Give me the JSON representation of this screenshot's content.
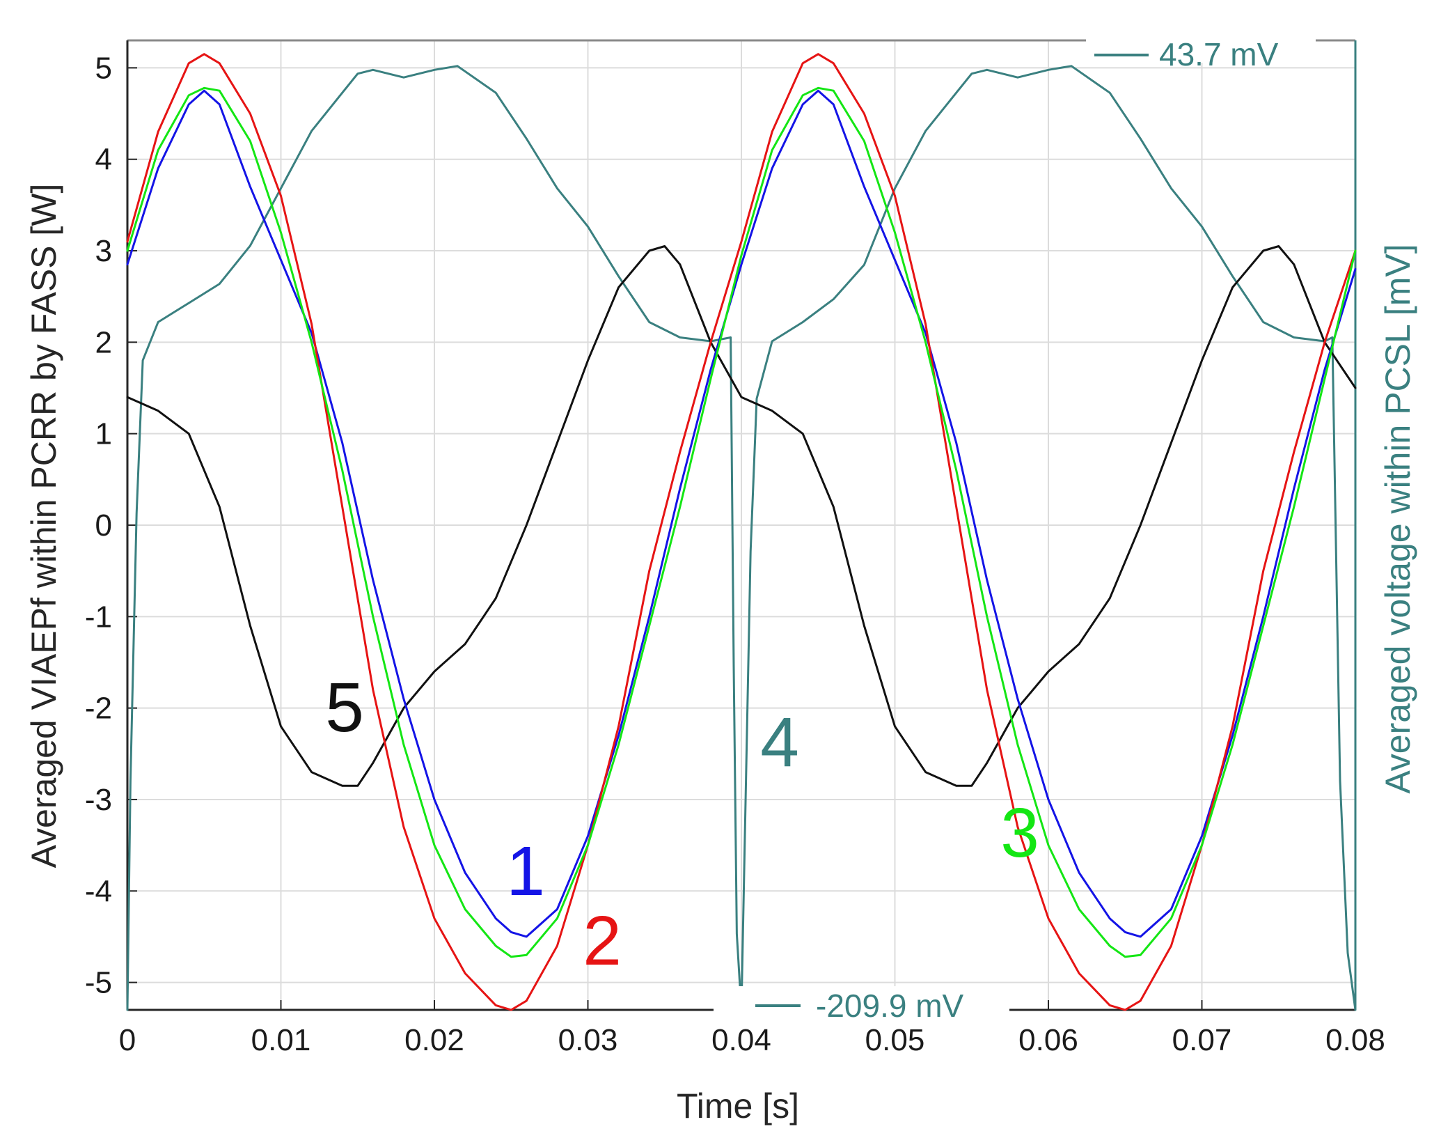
{
  "chart_data": {
    "type": "line",
    "xlabel": "Time [s]",
    "ylabel": "Averaged VIAEPf within PCRR by FASS [W]",
    "y2label": "Averaged voltage within PCSL [mV]",
    "xlim": [
      0,
      0.08
    ],
    "ylim": [
      -5.3,
      5.3
    ],
    "y2lim": [
      -209.9,
      43.7
    ],
    "x_ticks": [
      "0",
      "0.01",
      "0.02",
      "0.03",
      "0.04",
      "0.05",
      "0.06",
      "0.07",
      "0.08"
    ],
    "y_ticks": [
      "5",
      "4",
      "3",
      "2",
      "1",
      "0",
      "-1",
      "-2",
      "-3",
      "-4",
      "-5"
    ],
    "grid": true,
    "colors": {
      "series1": "#1414e6",
      "series2": "#e61414",
      "series3": "#14e614",
      "series4": "#3a8080",
      "series5": "#111111",
      "axis": "#262626",
      "grid": "#dcdcdc"
    },
    "series": [
      {
        "name": "1",
        "axis": "left",
        "x": [
          0,
          0.002,
          0.004,
          0.005,
          0.006,
          0.008,
          0.01,
          0.012,
          0.014,
          0.016,
          0.018,
          0.02,
          0.022,
          0.024,
          0.025,
          0.026,
          0.028,
          0.03,
          0.032,
          0.034,
          0.036,
          0.038,
          0.04,
          0.042,
          0.044,
          0.045,
          0.046,
          0.048,
          0.05,
          0.052,
          0.054,
          0.056,
          0.058,
          0.06,
          0.062,
          0.064,
          0.065,
          0.066,
          0.068,
          0.07,
          0.072,
          0.074,
          0.076,
          0.078,
          0.08
        ],
        "y": [
          2.85,
          3.9,
          4.6,
          4.75,
          4.6,
          3.7,
          2.9,
          2.1,
          0.9,
          -0.6,
          -1.9,
          -3.0,
          -3.8,
          -4.3,
          -4.45,
          -4.5,
          -4.2,
          -3.4,
          -2.3,
          -1.0,
          0.4,
          1.7,
          2.85,
          3.9,
          4.6,
          4.75,
          4.6,
          3.7,
          2.9,
          2.1,
          0.9,
          -0.6,
          -1.9,
          -3.0,
          -3.8,
          -4.3,
          -4.45,
          -4.5,
          -4.2,
          -3.4,
          -2.3,
          -1.0,
          0.4,
          1.7,
          2.8
        ]
      },
      {
        "name": "2",
        "axis": "left",
        "x": [
          0,
          0.002,
          0.004,
          0.005,
          0.006,
          0.008,
          0.01,
          0.012,
          0.014,
          0.016,
          0.018,
          0.02,
          0.022,
          0.024,
          0.025,
          0.026,
          0.028,
          0.03,
          0.032,
          0.034,
          0.036,
          0.038,
          0.04,
          0.042,
          0.044,
          0.045,
          0.046,
          0.048,
          0.05,
          0.052,
          0.054,
          0.056,
          0.058,
          0.06,
          0.062,
          0.064,
          0.065,
          0.066,
          0.068,
          0.07,
          0.072,
          0.074,
          0.076,
          0.078,
          0.08
        ],
        "y": [
          3.1,
          4.3,
          5.05,
          5.15,
          5.05,
          4.5,
          3.6,
          2.2,
          0.2,
          -1.8,
          -3.3,
          -4.3,
          -4.9,
          -5.25,
          -5.3,
          -5.2,
          -4.6,
          -3.5,
          -2.2,
          -0.5,
          0.8,
          2.0,
          3.1,
          4.3,
          5.05,
          5.15,
          5.05,
          4.5,
          3.6,
          2.2,
          0.2,
          -1.8,
          -3.3,
          -4.3,
          -4.9,
          -5.25,
          -5.3,
          -5.2,
          -4.6,
          -3.5,
          -2.2,
          -0.5,
          0.8,
          2.0,
          3.0
        ]
      },
      {
        "name": "3",
        "axis": "left",
        "x": [
          0,
          0.002,
          0.004,
          0.005,
          0.006,
          0.008,
          0.01,
          0.012,
          0.014,
          0.016,
          0.018,
          0.02,
          0.022,
          0.024,
          0.025,
          0.026,
          0.028,
          0.03,
          0.032,
          0.034,
          0.036,
          0.038,
          0.04,
          0.042,
          0.044,
          0.045,
          0.046,
          0.048,
          0.05,
          0.052,
          0.054,
          0.056,
          0.058,
          0.06,
          0.062,
          0.064,
          0.065,
          0.066,
          0.068,
          0.07,
          0.072,
          0.074,
          0.076,
          0.078,
          0.08
        ],
        "y": [
          3.0,
          4.1,
          4.7,
          4.78,
          4.75,
          4.2,
          3.2,
          2.0,
          0.6,
          -1.0,
          -2.4,
          -3.5,
          -4.2,
          -4.6,
          -4.72,
          -4.7,
          -4.3,
          -3.5,
          -2.4,
          -1.1,
          0.2,
          1.6,
          2.95,
          4.1,
          4.7,
          4.78,
          4.75,
          4.2,
          3.2,
          2.0,
          0.6,
          -1.0,
          -2.4,
          -3.5,
          -4.2,
          -4.6,
          -4.72,
          -4.7,
          -4.3,
          -3.5,
          -2.4,
          -1.1,
          0.2,
          1.6,
          3.0
        ]
      },
      {
        "name": "4",
        "axis": "right",
        "x": [
          0,
          0.0002,
          0.0006,
          0.001,
          0.002,
          0.004,
          0.006,
          0.008,
          0.01,
          0.012,
          0.014,
          0.015,
          0.016,
          0.018,
          0.02,
          0.0215,
          0.024,
          0.026,
          0.028,
          0.03,
          0.032,
          0.034,
          0.036,
          0.038,
          0.0393,
          0.0395,
          0.0397,
          0.04,
          0.0402,
          0.0406,
          0.041,
          0.042,
          0.044,
          0.046,
          0.048,
          0.05,
          0.052,
          0.054,
          0.055,
          0.056,
          0.058,
          0.06,
          0.0615,
          0.064,
          0.066,
          0.068,
          0.07,
          0.072,
          0.074,
          0.076,
          0.078,
          0.0785,
          0.0787,
          0.079,
          0.0795,
          0.08
        ],
        "y": [
          -209.9,
          -150,
          -80,
          -40,
          -30,
          -25,
          -20,
          -10,
          5,
          20,
          30,
          35,
          36,
          34,
          36,
          37,
          30,
          18,
          5,
          -5,
          -18,
          -30,
          -34,
          -35,
          -34,
          -120,
          -190,
          -209.9,
          -170,
          -90,
          -50,
          -35,
          -30,
          -24,
          -15,
          5,
          20,
          30,
          35,
          36,
          34,
          36,
          37,
          30,
          18,
          5,
          -5,
          -18,
          -30,
          -34,
          -35,
          -34,
          -80,
          -150,
          -195,
          -209.9
        ]
      },
      {
        "name": "5",
        "axis": "left",
        "x": [
          0,
          0.002,
          0.004,
          0.006,
          0.008,
          0.01,
          0.012,
          0.014,
          0.015,
          0.016,
          0.018,
          0.02,
          0.022,
          0.024,
          0.026,
          0.028,
          0.03,
          0.032,
          0.034,
          0.035,
          0.036,
          0.038,
          0.04,
          0.042,
          0.044,
          0.046,
          0.048,
          0.05,
          0.052,
          0.054,
          0.055,
          0.056,
          0.058,
          0.06,
          0.062,
          0.064,
          0.066,
          0.068,
          0.07,
          0.072,
          0.074,
          0.075,
          0.076,
          0.078,
          0.08
        ],
        "y": [
          1.4,
          1.25,
          1.0,
          0.2,
          -1.1,
          -2.2,
          -2.7,
          -2.85,
          -2.85,
          -2.6,
          -2.0,
          -1.6,
          -1.3,
          -0.8,
          0.0,
          0.9,
          1.8,
          2.6,
          3.0,
          3.05,
          2.85,
          2.0,
          1.4,
          1.25,
          1.0,
          0.2,
          -1.1,
          -2.2,
          -2.7,
          -2.85,
          -2.85,
          -2.6,
          -2.0,
          -1.6,
          -1.3,
          -0.8,
          0.0,
          0.9,
          1.8,
          2.6,
          3.0,
          3.05,
          2.85,
          2.0,
          1.5
        ]
      }
    ],
    "annotations": [
      {
        "text": "1",
        "series": "1"
      },
      {
        "text": "2",
        "series": "2"
      },
      {
        "text": "3",
        "series": "3"
      },
      {
        "text": "4",
        "series": "4"
      },
      {
        "text": "5",
        "series": "5"
      },
      {
        "text": "43.7 mV",
        "series": "4"
      },
      {
        "text": "-209.9 mV",
        "series": "4"
      }
    ]
  }
}
